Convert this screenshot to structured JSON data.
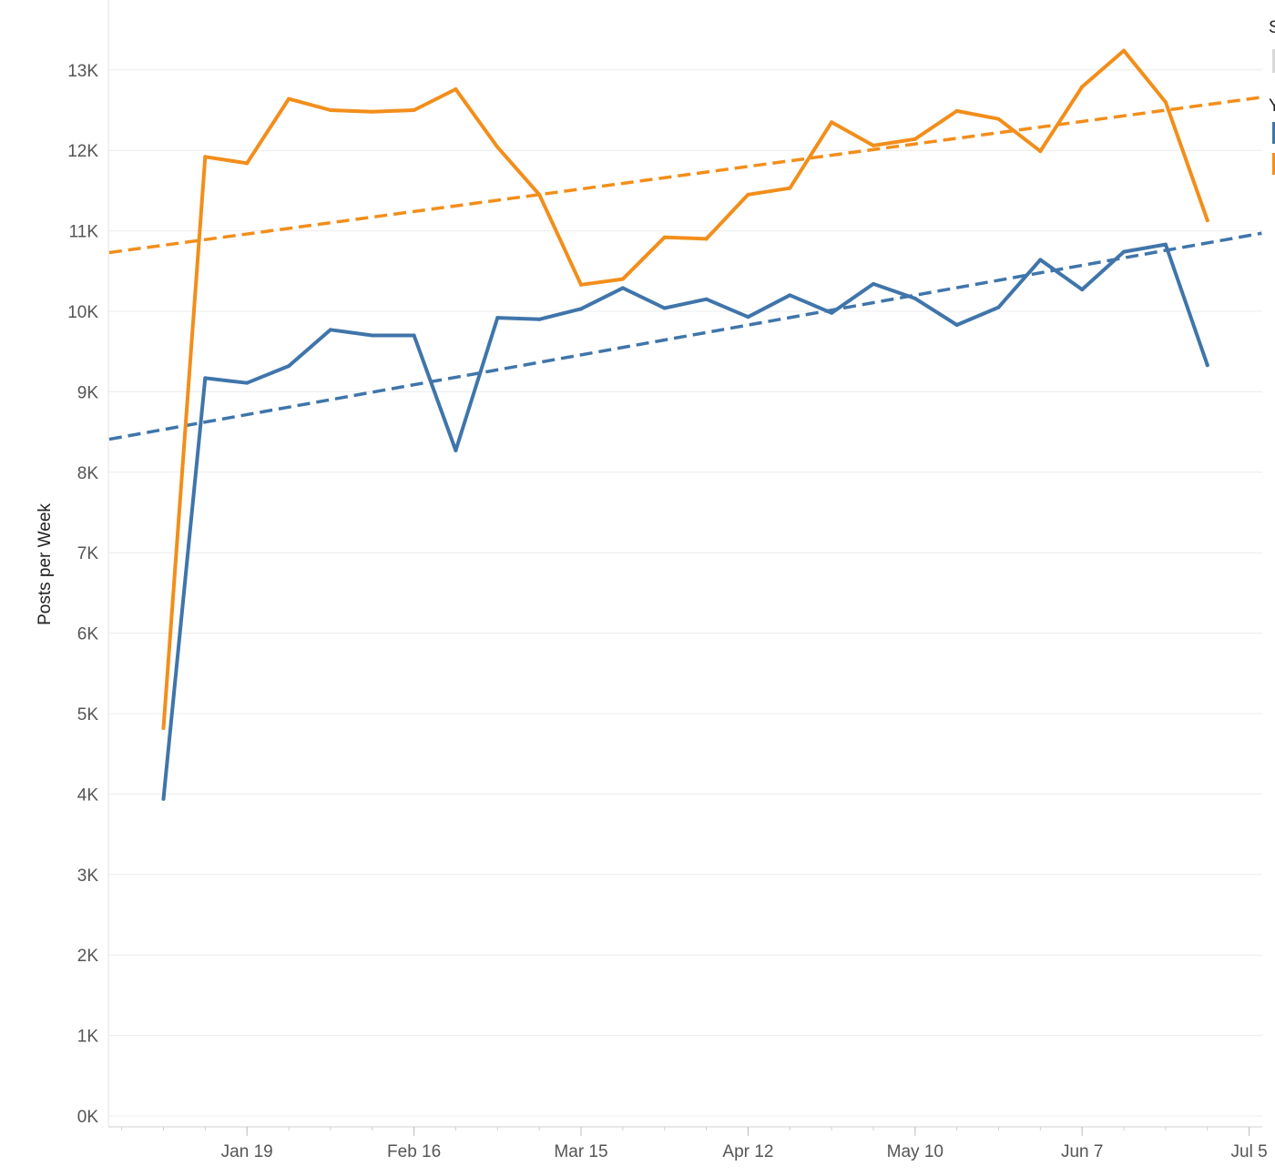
{
  "chart_data": {
    "type": "line",
    "title": "",
    "xlabel": "",
    "ylabel": "Posts per Week",
    "ylim": [
      0,
      13500
    ],
    "y_ticks": [
      "0K",
      "1K",
      "2K",
      "3K",
      "4K",
      "5K",
      "6K",
      "7K",
      "8K",
      "9K",
      "10K",
      "11K",
      "12K",
      "13K"
    ],
    "y_tick_values": [
      0,
      1000,
      2000,
      3000,
      4000,
      5000,
      6000,
      7000,
      8000,
      9000,
      10000,
      11000,
      12000,
      13000
    ],
    "x_ticks": [
      "Jan 19",
      "Feb 16",
      "Mar 15",
      "Apr 12",
      "May 10",
      "Jun 7",
      "Jul 5"
    ],
    "x_tick_weeks": [
      2,
      6,
      10,
      14,
      18,
      22,
      26
    ],
    "x_weeks": [
      0,
      1,
      2,
      3,
      4,
      5,
      6,
      7,
      8,
      9,
      10,
      11,
      12,
      13,
      14,
      15,
      16,
      17,
      18,
      19,
      20,
      21,
      22,
      23,
      24,
      25
    ],
    "series": [
      {
        "color": "#f28e1b",
        "values": [
          4820,
          11920,
          11840,
          12640,
          12500,
          12480,
          12500,
          12760,
          12040,
          11450,
          10330,
          10400,
          10920,
          10900,
          11450,
          11530,
          12350,
          12060,
          12140,
          12490,
          12390,
          11990,
          12790,
          13240,
          12600,
          11130
        ]
      },
      {
        "color": "#3f75aa",
        "values": [
          3940,
          9170,
          9110,
          9320,
          9770,
          9700,
          9700,
          8270,
          9920,
          9900,
          10030,
          10290,
          10040,
          10150,
          9930,
          10200,
          9980,
          10340,
          10160,
          9830,
          10050,
          10640,
          10270,
          10740,
          10830,
          9330
        ]
      }
    ],
    "trend_lines": [
      {
        "color": "#f28e1b",
        "style": "dashed",
        "x_range": [
          -1.3,
          26.3
        ],
        "y_range": [
          10730,
          12660
        ]
      },
      {
        "color": "#3f75aa",
        "style": "dashed",
        "x_range": [
          -1.3,
          26.3
        ],
        "y_range": [
          8410,
          10970
        ]
      }
    ],
    "grid": true,
    "legend": {
      "placement": "top-right",
      "headings": [
        "S",
        "Y"
      ],
      "swatch_colors": [
        "#d9d9d9",
        "#3f75aa",
        "#f28e1b"
      ]
    }
  }
}
